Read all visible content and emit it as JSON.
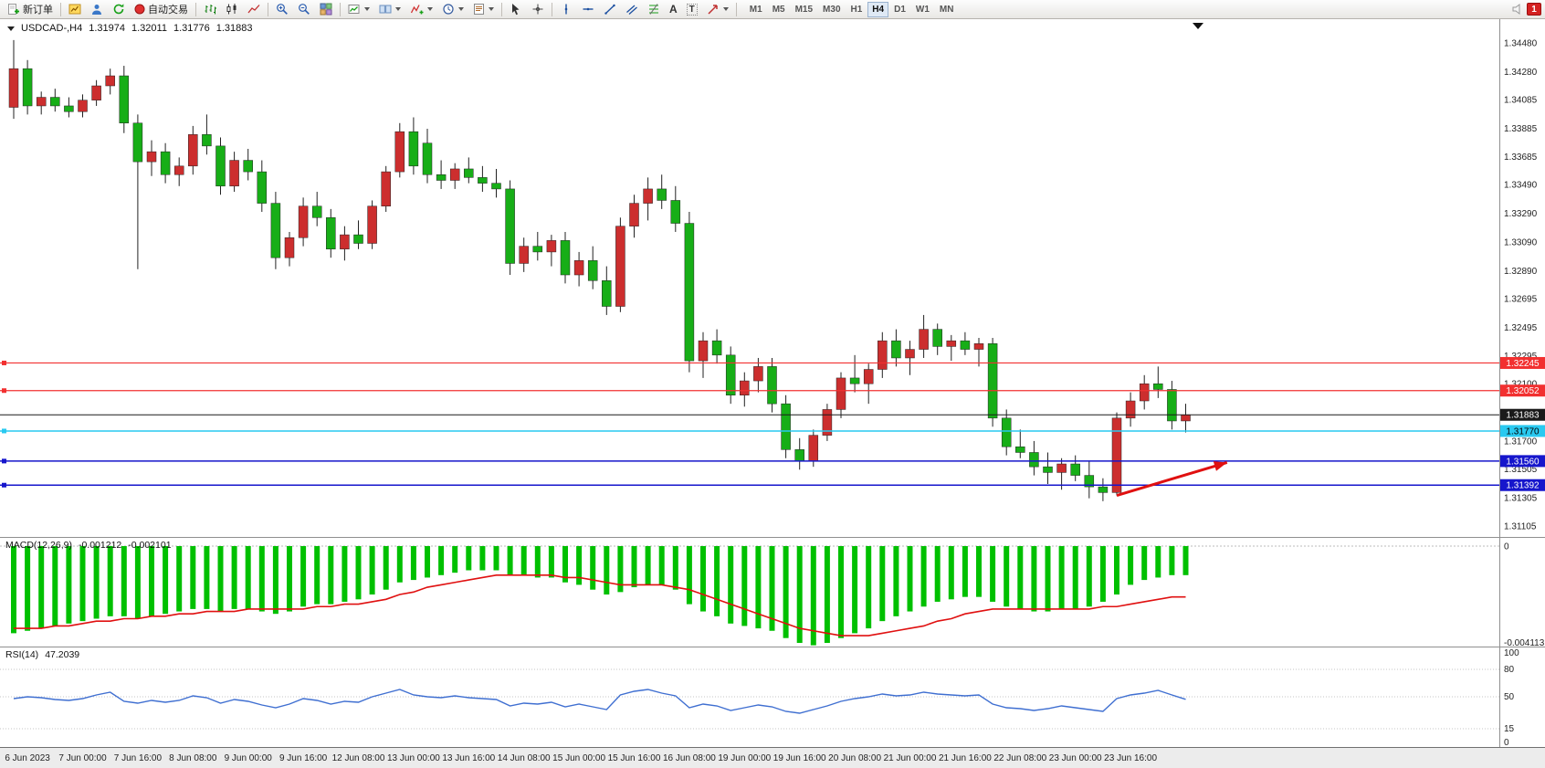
{
  "toolbar": {
    "new_order": "新订单",
    "auto_trading": "自动交易",
    "text_tool": "A",
    "label_tool": "T",
    "timeframes": [
      "M1",
      "M5",
      "M15",
      "M30",
      "H1",
      "H4",
      "D1",
      "W1",
      "MN"
    ],
    "active_timeframe": "H4",
    "notification_count": "1"
  },
  "chart": {
    "symbol_period": "USDCAD-,H4",
    "open": "1.31974",
    "high": "1.32011",
    "low": "1.31776",
    "close": "1.31883"
  },
  "indicators": {
    "macd": {
      "name": "MACD(12,26,9)",
      "value": "-0.001212",
      "signal_value": "-0.002101",
      "axis_zero": "0",
      "axis_min": "-0.004113"
    },
    "rsi": {
      "name": "RSI(14)",
      "value": "47.2039",
      "axis_labels": [
        "100",
        "80",
        "50",
        "15",
        "0"
      ]
    }
  },
  "hlines": [
    {
      "price": 1.32245,
      "label": "1.32245",
      "color": "#f23030",
      "width": 1.2
    },
    {
      "price": 1.32052,
      "label": "1.32052",
      "color": "#f23030",
      "width": 1.2
    },
    {
      "price": 1.31883,
      "label": "1.31883",
      "color": "#1a1a1a",
      "width": 1,
      "bid": true
    },
    {
      "price": 1.3177,
      "label": "1.31770",
      "color": "#29c9f0",
      "width": 1.5,
      "dark_text": true
    },
    {
      "price": 1.3156,
      "label": "1.31560",
      "color": "#1616cc",
      "width": 1.5
    },
    {
      "price": 1.31392,
      "label": "1.31392",
      "color": "#1616cc",
      "width": 1.5
    }
  ],
  "colors": {
    "up": "#cc2e2e",
    "down": "#17ae17",
    "wick": "#222222",
    "macd_hist": "#00c000",
    "macd_signal": "#e01010",
    "rsi": "#3f6fd1",
    "arrow": "#e01010"
  },
  "chart_data": {
    "type": "candlestick+indicators",
    "main": {
      "type": "candlestick",
      "symbol": "USDCAD",
      "period": "H4",
      "up_rule": "red body = close>=open, green body = close<open",
      "y_range": [
        1.3103,
        1.3462
      ],
      "y_ticks": [
        "1.34480",
        "1.34280",
        "1.34085",
        "1.33885",
        "1.33685",
        "1.33490",
        "1.33290",
        "1.33090",
        "1.32890",
        "1.32695",
        "1.32495",
        "1.32295",
        "1.32100",
        "1.31900",
        "1.31700",
        "1.31505",
        "1.31305",
        "1.31105"
      ],
      "ohlc": [
        [
          1.3403,
          1.345,
          1.3395,
          1.343
        ],
        [
          1.343,
          1.3436,
          1.3398,
          1.3404
        ],
        [
          1.3404,
          1.3414,
          1.3398,
          1.341
        ],
        [
          1.341,
          1.3416,
          1.34,
          1.3404
        ],
        [
          1.3404,
          1.341,
          1.3396,
          1.34
        ],
        [
          1.34,
          1.3412,
          1.3396,
          1.3408
        ],
        [
          1.3408,
          1.3422,
          1.3404,
          1.3418
        ],
        [
          1.3418,
          1.343,
          1.3412,
          1.3425
        ],
        [
          1.3425,
          1.3432,
          1.3385,
          1.3392
        ],
        [
          1.3392,
          1.3398,
          1.329,
          1.3365
        ],
        [
          1.3365,
          1.338,
          1.3355,
          1.3372
        ],
        [
          1.3372,
          1.3378,
          1.335,
          1.3356
        ],
        [
          1.3356,
          1.3368,
          1.3348,
          1.3362
        ],
        [
          1.3362,
          1.339,
          1.3356,
          1.3384
        ],
        [
          1.3384,
          1.3398,
          1.337,
          1.3376
        ],
        [
          1.3376,
          1.3382,
          1.3342,
          1.3348
        ],
        [
          1.3348,
          1.3372,
          1.3344,
          1.3366
        ],
        [
          1.3366,
          1.3374,
          1.3352,
          1.3358
        ],
        [
          1.3358,
          1.3366,
          1.333,
          1.3336
        ],
        [
          1.3336,
          1.3344,
          1.329,
          1.3298
        ],
        [
          1.3298,
          1.3316,
          1.3292,
          1.3312
        ],
        [
          1.3312,
          1.334,
          1.3306,
          1.3334
        ],
        [
          1.3334,
          1.3344,
          1.332,
          1.3326
        ],
        [
          1.3326,
          1.3332,
          1.3298,
          1.3304
        ],
        [
          1.3304,
          1.332,
          1.3296,
          1.3314
        ],
        [
          1.3314,
          1.3324,
          1.3304,
          1.3308
        ],
        [
          1.3308,
          1.3338,
          1.3304,
          1.3334
        ],
        [
          1.3334,
          1.3362,
          1.333,
          1.3358
        ],
        [
          1.3358,
          1.3392,
          1.3354,
          1.3386
        ],
        [
          1.3386,
          1.3396,
          1.3356,
          1.3362
        ],
        [
          1.3378,
          1.3388,
          1.335,
          1.3356
        ],
        [
          1.3356,
          1.3366,
          1.3346,
          1.3352
        ],
        [
          1.3352,
          1.3364,
          1.3346,
          1.336
        ],
        [
          1.336,
          1.3368,
          1.335,
          1.3354
        ],
        [
          1.3354,
          1.3362,
          1.3344,
          1.335
        ],
        [
          1.335,
          1.336,
          1.334,
          1.3346
        ],
        [
          1.3346,
          1.3352,
          1.3286,
          1.3294
        ],
        [
          1.3294,
          1.3312,
          1.3288,
          1.3306
        ],
        [
          1.3306,
          1.3316,
          1.3296,
          1.3302
        ],
        [
          1.3302,
          1.3314,
          1.3292,
          1.331
        ],
        [
          1.331,
          1.3316,
          1.328,
          1.3286
        ],
        [
          1.3286,
          1.3302,
          1.3278,
          1.3296
        ],
        [
          1.3296,
          1.3306,
          1.3276,
          1.3282
        ],
        [
          1.3282,
          1.3292,
          1.3258,
          1.3264
        ],
        [
          1.3264,
          1.3326,
          1.326,
          1.332
        ],
        [
          1.332,
          1.3342,
          1.3312,
          1.3336
        ],
        [
          1.3336,
          1.3354,
          1.3324,
          1.3346
        ],
        [
          1.3346,
          1.3356,
          1.3332,
          1.3338
        ],
        [
          1.3338,
          1.3348,
          1.3316,
          1.3322
        ],
        [
          1.3322,
          1.333,
          1.3218,
          1.3226
        ],
        [
          1.3226,
          1.3246,
          1.3214,
          1.324
        ],
        [
          1.324,
          1.3248,
          1.3224,
          1.323
        ],
        [
          1.323,
          1.3236,
          1.3196,
          1.3202
        ],
        [
          1.3202,
          1.3218,
          1.3194,
          1.3212
        ],
        [
          1.3212,
          1.3228,
          1.3204,
          1.3222
        ],
        [
          1.3222,
          1.3228,
          1.319,
          1.3196
        ],
        [
          1.3196,
          1.3202,
          1.3158,
          1.3164
        ],
        [
          1.3164,
          1.3172,
          1.315,
          1.3156
        ],
        [
          1.3156,
          1.3178,
          1.3152,
          1.3174
        ],
        [
          1.3174,
          1.3196,
          1.317,
          1.3192
        ],
        [
          1.3192,
          1.3218,
          1.3186,
          1.3214
        ],
        [
          1.3214,
          1.323,
          1.3204,
          1.321
        ],
        [
          1.321,
          1.3224,
          1.3196,
          1.322
        ],
        [
          1.322,
          1.3246,
          1.3214,
          1.324
        ],
        [
          1.324,
          1.3248,
          1.3222,
          1.3228
        ],
        [
          1.3228,
          1.324,
          1.3216,
          1.3234
        ],
        [
          1.3234,
          1.3258,
          1.3228,
          1.3248
        ],
        [
          1.3248,
          1.3252,
          1.323,
          1.3236
        ],
        [
          1.3236,
          1.3244,
          1.3226,
          1.324
        ],
        [
          1.324,
          1.3246,
          1.323,
          1.3234
        ],
        [
          1.3234,
          1.3242,
          1.3222,
          1.3238
        ],
        [
          1.3238,
          1.3242,
          1.318,
          1.3186
        ],
        [
          1.3186,
          1.3192,
          1.316,
          1.3166
        ],
        [
          1.3166,
          1.3178,
          1.3158,
          1.3162
        ],
        [
          1.3162,
          1.317,
          1.3146,
          1.3152
        ],
        [
          1.3152,
          1.3162,
          1.314,
          1.3148
        ],
        [
          1.3148,
          1.3158,
          1.3136,
          1.3154
        ],
        [
          1.3154,
          1.316,
          1.3142,
          1.3146
        ],
        [
          1.3146,
          1.3156,
          1.313,
          1.3138
        ],
        [
          1.3138,
          1.3144,
          1.3128,
          1.3134
        ],
        [
          1.3134,
          1.319,
          1.3132,
          1.3186
        ],
        [
          1.3186,
          1.3204,
          1.318,
          1.3198
        ],
        [
          1.3198,
          1.3216,
          1.3192,
          1.321
        ],
        [
          1.321,
          1.3222,
          1.32,
          1.3206
        ],
        [
          1.3206,
          1.3212,
          1.3178,
          1.3184
        ],
        [
          1.3184,
          1.3196,
          1.3176,
          1.31883
        ]
      ],
      "arrow": {
        "from_candle": 80,
        "from_price": 1.3132,
        "to_candle": 88,
        "to_price": 1.3155
      }
    },
    "macd": {
      "type": "bar+line",
      "y_range": [
        -0.00445,
        0.0004
      ],
      "hist": [
        -0.0036,
        -0.0035,
        -0.0034,
        -0.0033,
        -0.0032,
        -0.0031,
        -0.003,
        -0.0029,
        -0.0029,
        -0.003,
        -0.0029,
        -0.0028,
        -0.0027,
        -0.0026,
        -0.0026,
        -0.0027,
        -0.0026,
        -0.0026,
        -0.0027,
        -0.0028,
        -0.0027,
        -0.0025,
        -0.0024,
        -0.0024,
        -0.0023,
        -0.0022,
        -0.002,
        -0.0018,
        -0.0015,
        -0.0014,
        -0.0013,
        -0.0012,
        -0.0011,
        -0.001,
        -0.001,
        -0.001,
        -0.0012,
        -0.0012,
        -0.0013,
        -0.0013,
        -0.0015,
        -0.0016,
        -0.0018,
        -0.002,
        -0.0019,
        -0.0017,
        -0.0016,
        -0.0016,
        -0.0018,
        -0.0024,
        -0.0027,
        -0.0029,
        -0.0032,
        -0.0033,
        -0.0034,
        -0.0035,
        -0.0038,
        -0.004,
        -0.0041,
        -0.004,
        -0.0038,
        -0.0036,
        -0.0034,
        -0.0031,
        -0.0029,
        -0.0027,
        -0.0025,
        -0.0023,
        -0.0022,
        -0.0021,
        -0.0021,
        -0.0023,
        -0.0025,
        -0.0026,
        -0.0027,
        -0.0027,
        -0.0026,
        -0.0026,
        -0.0025,
        -0.0023,
        -0.002,
        -0.0016,
        -0.0014,
        -0.0013,
        -0.0012,
        -0.0012
      ],
      "signal": [
        -0.0034,
        -0.0034,
        -0.0034,
        -0.0033,
        -0.0033,
        -0.0032,
        -0.0031,
        -0.0031,
        -0.003,
        -0.003,
        -0.0029,
        -0.0029,
        -0.0028,
        -0.0028,
        -0.0027,
        -0.0027,
        -0.0027,
        -0.0026,
        -0.0026,
        -0.0026,
        -0.0026,
        -0.0026,
        -0.0025,
        -0.0025,
        -0.0024,
        -0.0024,
        -0.0023,
        -0.0022,
        -0.002,
        -0.0019,
        -0.0017,
        -0.0016,
        -0.0015,
        -0.0014,
        -0.0013,
        -0.0012,
        -0.0012,
        -0.0012,
        -0.0012,
        -0.0012,
        -0.0013,
        -0.0013,
        -0.0014,
        -0.0015,
        -0.0016,
        -0.0016,
        -0.0016,
        -0.0016,
        -0.0017,
        -0.0018,
        -0.002,
        -0.0022,
        -0.0024,
        -0.0026,
        -0.0028,
        -0.003,
        -0.0032,
        -0.0034,
        -0.0035,
        -0.0036,
        -0.0037,
        -0.0037,
        -0.0037,
        -0.0036,
        -0.0035,
        -0.0034,
        -0.0033,
        -0.0031,
        -0.003,
        -0.0028,
        -0.0027,
        -0.0026,
        -0.0026,
        -0.0026,
        -0.0026,
        -0.0026,
        -0.0026,
        -0.0026,
        -0.0026,
        -0.0025,
        -0.0025,
        -0.0024,
        -0.0023,
        -0.0022,
        -0.0021,
        -0.0021
      ]
    },
    "rsi": {
      "type": "line",
      "y_range": [
        0,
        100
      ],
      "levels": [
        80,
        50,
        15
      ],
      "values": [
        48,
        50,
        49,
        47,
        46,
        48,
        52,
        55,
        45,
        43,
        46,
        44,
        46,
        51,
        49,
        43,
        47,
        45,
        41,
        38,
        42,
        48,
        46,
        42,
        45,
        44,
        50,
        54,
        58,
        52,
        50,
        49,
        51,
        49,
        48,
        47,
        40,
        43,
        42,
        44,
        39,
        42,
        39,
        36,
        52,
        56,
        58,
        54,
        51,
        38,
        42,
        40,
        35,
        38,
        41,
        39,
        34,
        32,
        36,
        40,
        45,
        48,
        50,
        53,
        51,
        52,
        55,
        53,
        52,
        51,
        52,
        42,
        38,
        37,
        35,
        37,
        40,
        38,
        36,
        34,
        48,
        52,
        54,
        57,
        52,
        47.2
      ]
    },
    "x_labels": [
      "6 Jun 2023",
      "7 Jun 00:00",
      "7 Jun 16:00",
      "8 Jun 08:00",
      "9 Jun 00:00",
      "9 Jun 16:00",
      "12 Jun 08:00",
      "13 Jun 00:00",
      "13 Jun 16:00",
      "14 Jun 08:00",
      "15 Jun 00:00",
      "15 Jun 16:00",
      "16 Jun 08:00",
      "19 Jun 00:00",
      "19 Jun 16:00",
      "20 Jun 08:00",
      "21 Jun 00:00",
      "21 Jun 16:00",
      "22 Jun 08:00",
      "23 Jun 00:00",
      "23 Jun 16:00"
    ],
    "label_start_index": 1,
    "label_every": 4
  }
}
